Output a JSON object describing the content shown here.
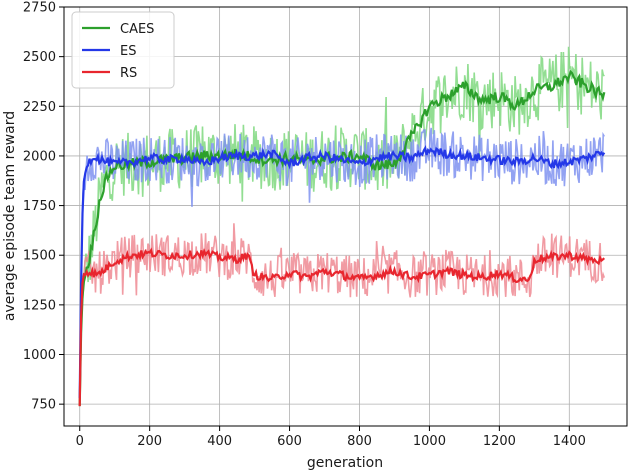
{
  "chart_data": {
    "type": "line",
    "xlabel": "generation",
    "ylabel": "average episode team reward",
    "xlim": [
      -45,
      1565
    ],
    "ylim": [
      640,
      2750
    ],
    "xticks": [
      0,
      200,
      400,
      600,
      800,
      1000,
      1200,
      1400
    ],
    "yticks": [
      750,
      1000,
      1250,
      1500,
      1750,
      2000,
      2250,
      2500,
      2750
    ],
    "grid": true,
    "legend_position": "top-left",
    "series": [
      {
        "name": "CAES",
        "color": "#2ca02c",
        "raw_color": "#7fd87f",
        "raw_spread": 160,
        "x": [
          0,
          5,
          10,
          20,
          30,
          40,
          50,
          60,
          80,
          100,
          150,
          200,
          250,
          300,
          350,
          400,
          450,
          500,
          550,
          600,
          650,
          700,
          750,
          800,
          850,
          900,
          950,
          1000,
          1050,
          1100,
          1150,
          1200,
          1250,
          1300,
          1350,
          1400,
          1450,
          1500
        ],
        "values": [
          740,
          1200,
          1350,
          1430,
          1500,
          1600,
          1700,
          1800,
          1900,
          1950,
          1960,
          1970,
          1980,
          1990,
          2000,
          2000,
          2010,
          1990,
          1980,
          1990,
          1970,
          1990,
          1990,
          2000,
          1950,
          1960,
          2100,
          2250,
          2300,
          2350,
          2280,
          2300,
          2250,
          2330,
          2350,
          2400,
          2350,
          2300
        ]
      },
      {
        "name": "ES",
        "color": "#2438e8",
        "raw_color": "#7f92f0",
        "raw_spread": 120,
        "x": [
          0,
          5,
          10,
          20,
          40,
          60,
          100,
          150,
          200,
          250,
          300,
          350,
          400,
          450,
          500,
          550,
          600,
          650,
          700,
          750,
          800,
          850,
          900,
          950,
          1000,
          1050,
          1100,
          1150,
          1200,
          1250,
          1300,
          1350,
          1400,
          1450,
          1500
        ],
        "values": [
          780,
          1500,
          1850,
          1960,
          2000,
          1980,
          1960,
          1970,
          1990,
          1980,
          1990,
          1960,
          1990,
          2000,
          2000,
          2010,
          1960,
          1990,
          2000,
          1980,
          1960,
          1990,
          2000,
          1990,
          2030,
          2010,
          2000,
          1990,
          1980,
          1970,
          1990,
          1960,
          1970,
          1990,
          2020
        ]
      },
      {
        "name": "RS",
        "color": "#e8262e",
        "raw_color": "#ef8a93",
        "raw_spread": 110,
        "x": [
          0,
          5,
          10,
          20,
          50,
          80,
          100,
          150,
          200,
          250,
          300,
          350,
          400,
          450,
          480,
          500,
          550,
          600,
          650,
          700,
          750,
          800,
          850,
          900,
          950,
          1000,
          1050,
          1100,
          1150,
          1200,
          1250,
          1290,
          1300,
          1350,
          1400,
          1450,
          1500
        ],
        "values": [
          740,
          1300,
          1400,
          1420,
          1400,
          1440,
          1470,
          1500,
          1510,
          1500,
          1500,
          1510,
          1490,
          1480,
          1500,
          1400,
          1380,
          1410,
          1390,
          1420,
          1400,
          1380,
          1400,
          1420,
          1390,
          1400,
          1420,
          1400,
          1390,
          1410,
          1380,
          1380,
          1480,
          1490,
          1500,
          1480,
          1470
        ]
      }
    ]
  }
}
